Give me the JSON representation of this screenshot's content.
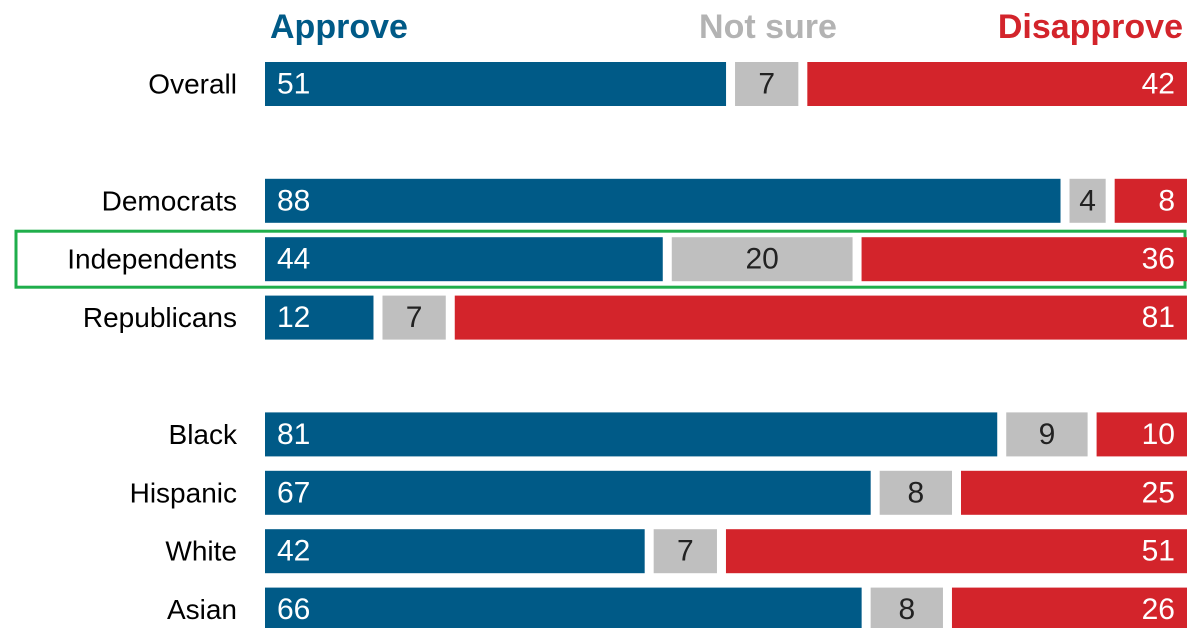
{
  "chart_data": {
    "type": "stacked_bar_horizontal",
    "categories": [
      "Overall",
      null,
      "Democrats",
      "Independents",
      "Republicans",
      null,
      "Black",
      "Hispanic",
      "White",
      "Asian"
    ],
    "series": [
      {
        "name": "Approve",
        "color": "#005a87",
        "values": [
          51,
          null,
          88,
          44,
          12,
          null,
          81,
          67,
          42,
          66
        ]
      },
      {
        "name": "Not sure",
        "color": "#bfbfbf",
        "values": [
          7,
          null,
          4,
          20,
          7,
          null,
          9,
          8,
          7,
          8
        ]
      },
      {
        "name": "Disapprove",
        "color": "#d3242b",
        "values": [
          42,
          null,
          8,
          36,
          81,
          null,
          10,
          25,
          51,
          26
        ]
      }
    ],
    "xlim": [
      0,
      100
    ],
    "highlight": 3,
    "highlight_color": "#1fae4b"
  }
}
